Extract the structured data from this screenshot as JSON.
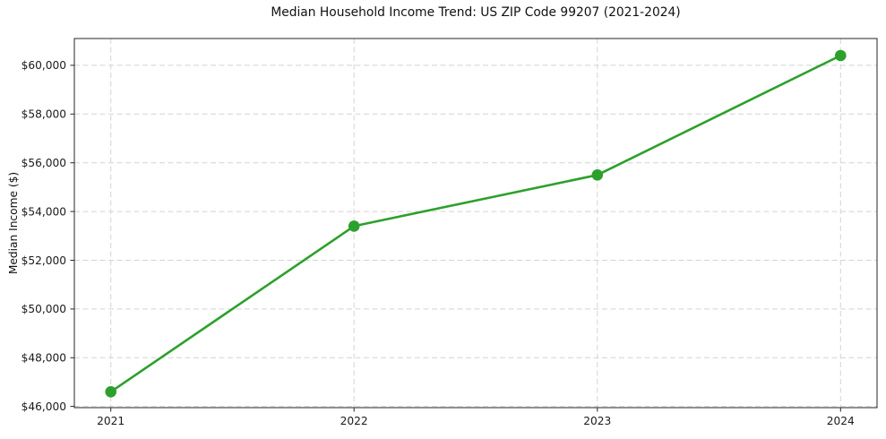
{
  "page": {
    "background": "#ffffff"
  },
  "chart_data": {
    "type": "line",
    "title": "Median Household Income Trend: US ZIP Code 99207 (2021-2024)",
    "xlabel": "",
    "ylabel": "Median Income ($)",
    "x": [
      2021,
      2022,
      2023,
      2024
    ],
    "x_tick_labels": [
      "2021",
      "2022",
      "2023",
      "2024"
    ],
    "series": [
      {
        "name": "Median household income",
        "values": [
          46600,
          53400,
          55500,
          60400
        ]
      }
    ],
    "y_ticks": [
      46000,
      48000,
      50000,
      52000,
      54000,
      56000,
      58000,
      60000
    ],
    "y_tick_labels": [
      "$46,000",
      "$48,000",
      "$50,000",
      "$52,000",
      "$54,000",
      "$56,000",
      "$58,000",
      "$60,000"
    ],
    "xlim": [
      2020.85,
      2024.15
    ],
    "ylim": [
      45950,
      61100
    ],
    "grid": true,
    "grid_style": "dashed",
    "legend": "none",
    "line_color": "#2ca02c",
    "marker": "circle",
    "grid_color": "#d4d4d4",
    "axis_color": "#262626",
    "text_color": "#1a1a1a"
  }
}
